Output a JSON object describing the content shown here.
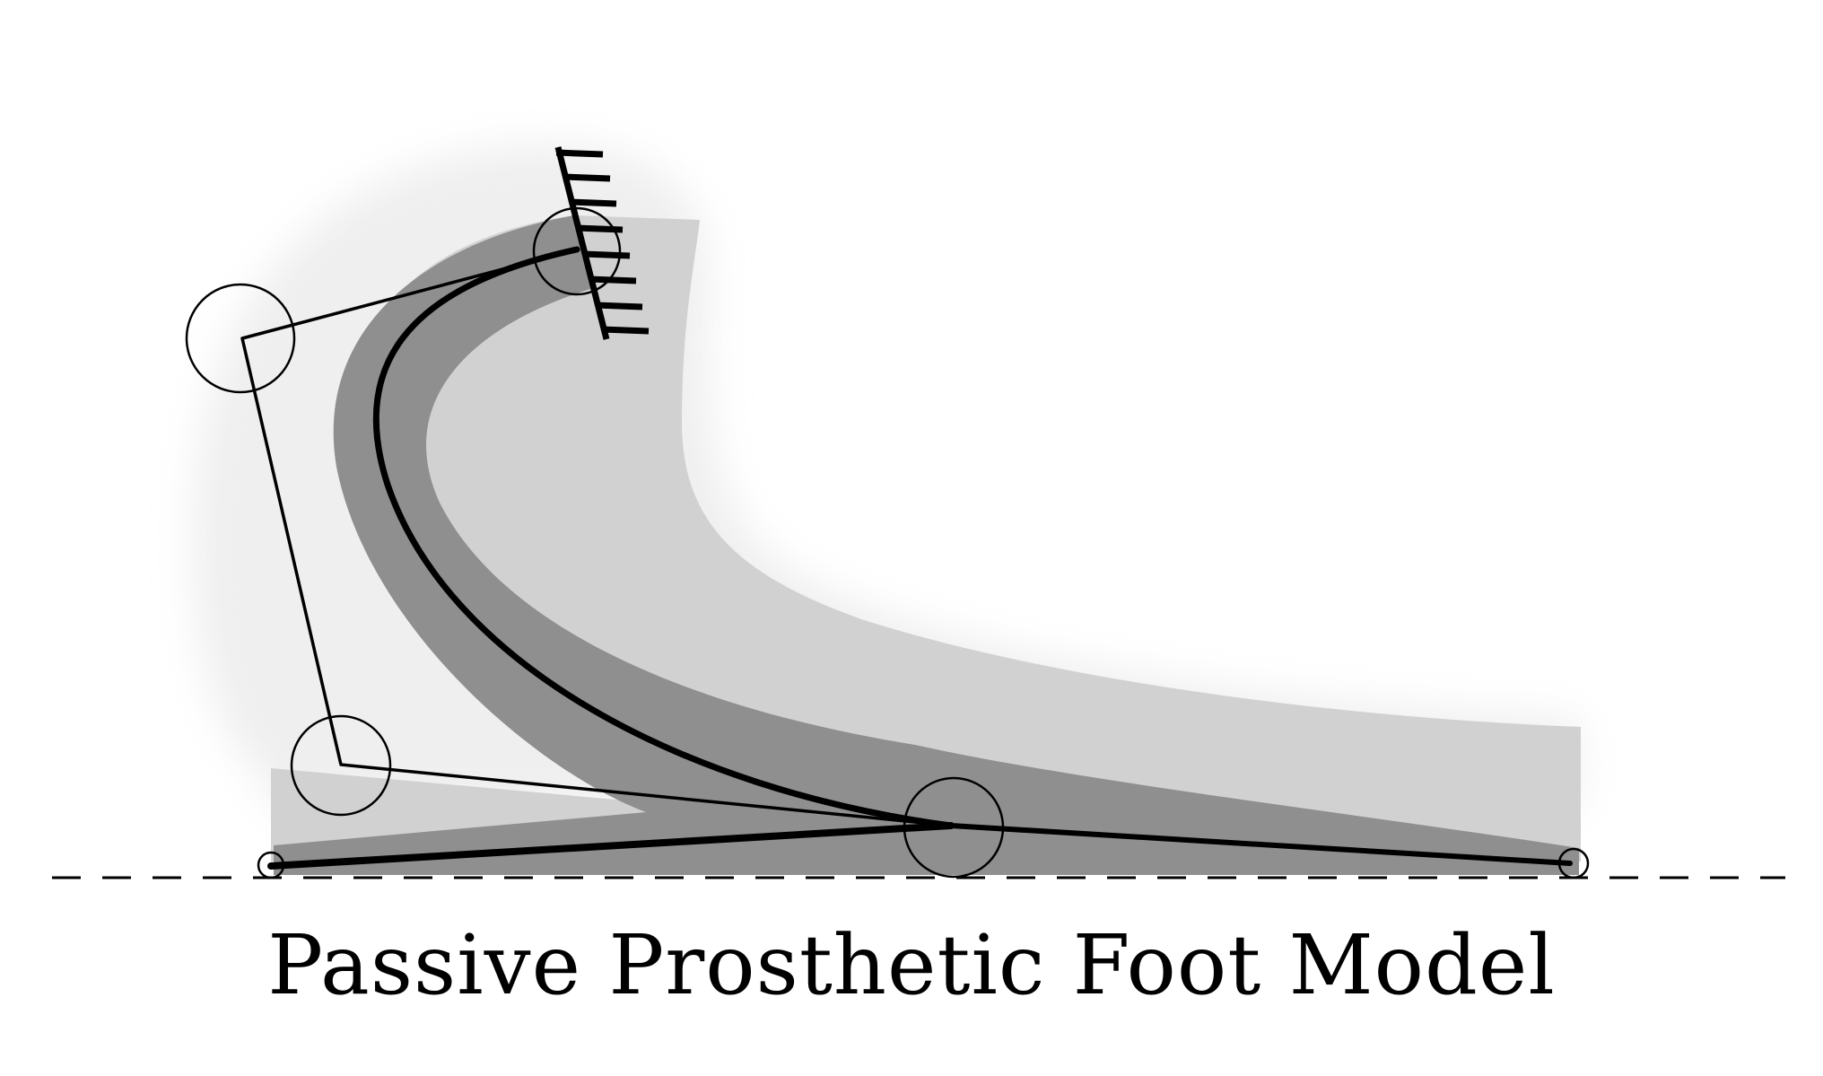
{
  "caption": "Passive Prosthetic Foot Model",
  "colors": {
    "background": "#ffffff",
    "keel_band": "#909090",
    "outer_foot": "#d0d0d0",
    "shadow_halo": "#e8e8e8",
    "stroke": "#000000"
  },
  "diagram_elements": {
    "ground_line": "dashed",
    "fixed_support": "hatched-wall",
    "pin_joints": 6,
    "rigid_links": 5,
    "flexible_keel": "curved-beam"
  }
}
